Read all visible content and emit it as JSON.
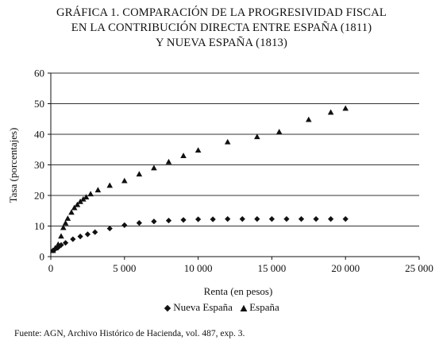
{
  "title_lines": [
    "GRÁFICA 1. COMPARACIÓN DE LA PROGRESIVIDAD FISCAL",
    "EN LA CONTRIBUCIÓN DIRECTA ENTRE ESPAÑA (1811)",
    "Y NUEVA ESPAÑA (1813)"
  ],
  "source_note": "Fuente: AGN, Archivo Histórico de Hacienda, vol. 487, exp. 3.",
  "chart_data": {
    "type": "scatter",
    "title": "GRÁFICA 1. COMPARACIÓN DE LA PROGRESIVIDAD FISCAL EN LA CONTRIBUCIÓN DIRECTA ENTRE ESPAÑA (1811) Y NUEVA ESPAÑA (1813)",
    "xlabel": "Renta (en pesos)",
    "ylabel": "Tasa (porcentajes)",
    "xlim": [
      0,
      25000
    ],
    "ylim": [
      0,
      60
    ],
    "x_ticks": [
      0,
      5000,
      10000,
      15000,
      20000,
      25000
    ],
    "x_tick_labels": [
      "0",
      "5 000",
      "10 000",
      "15 000",
      "20 000",
      "25 000"
    ],
    "y_ticks": [
      0,
      10,
      20,
      30,
      40,
      50,
      60
    ],
    "y_tick_labels": [
      "0",
      "10",
      "20",
      "30",
      "40",
      "50",
      "60"
    ],
    "grid": "horizontal",
    "legend_position": "bottom",
    "series": [
      {
        "name": "Nueva España",
        "marker": "diamond",
        "color": "#111111",
        "points": [
          [
            150,
            2.0
          ],
          [
            300,
            2.5
          ],
          [
            500,
            3.0
          ],
          [
            700,
            3.8
          ],
          [
            1000,
            4.5
          ],
          [
            1500,
            5.7
          ],
          [
            2000,
            6.6
          ],
          [
            2500,
            7.3
          ],
          [
            3000,
            8.0
          ],
          [
            4000,
            9.2
          ],
          [
            5000,
            10.3
          ],
          [
            6000,
            11.0
          ],
          [
            7000,
            11.5
          ],
          [
            8000,
            11.8
          ],
          [
            9000,
            12.0
          ],
          [
            10000,
            12.2
          ],
          [
            11000,
            12.2
          ],
          [
            12000,
            12.3
          ],
          [
            13000,
            12.3
          ],
          [
            14000,
            12.3
          ],
          [
            15000,
            12.3
          ],
          [
            16000,
            12.3
          ],
          [
            17000,
            12.3
          ],
          [
            18000,
            12.3
          ],
          [
            19000,
            12.3
          ],
          [
            20000,
            12.3
          ]
        ]
      },
      {
        "name": "España",
        "marker": "triangle",
        "color": "#111111",
        "points": [
          [
            150,
            2.0
          ],
          [
            300,
            2.8
          ],
          [
            500,
            4.0
          ],
          [
            700,
            6.7
          ],
          [
            850,
            9.5
          ],
          [
            1000,
            11.0
          ],
          [
            1150,
            12.5
          ],
          [
            1400,
            14.5
          ],
          [
            1600,
            16.0
          ],
          [
            1800,
            17.0
          ],
          [
            2000,
            18.0
          ],
          [
            2200,
            18.8
          ],
          [
            2400,
            19.5
          ],
          [
            2700,
            20.5
          ],
          [
            3200,
            21.8
          ],
          [
            4000,
            23.3
          ],
          [
            5000,
            24.8
          ],
          [
            6000,
            27.0
          ],
          [
            7000,
            29.0
          ],
          [
            8000,
            31.0
          ],
          [
            9000,
            33.0
          ],
          [
            10000,
            34.8
          ],
          [
            12000,
            37.5
          ],
          [
            14000,
            39.2
          ],
          [
            15500,
            40.8
          ],
          [
            17500,
            44.8
          ],
          [
            19000,
            47.2
          ],
          [
            20000,
            48.5
          ]
        ]
      }
    ]
  }
}
